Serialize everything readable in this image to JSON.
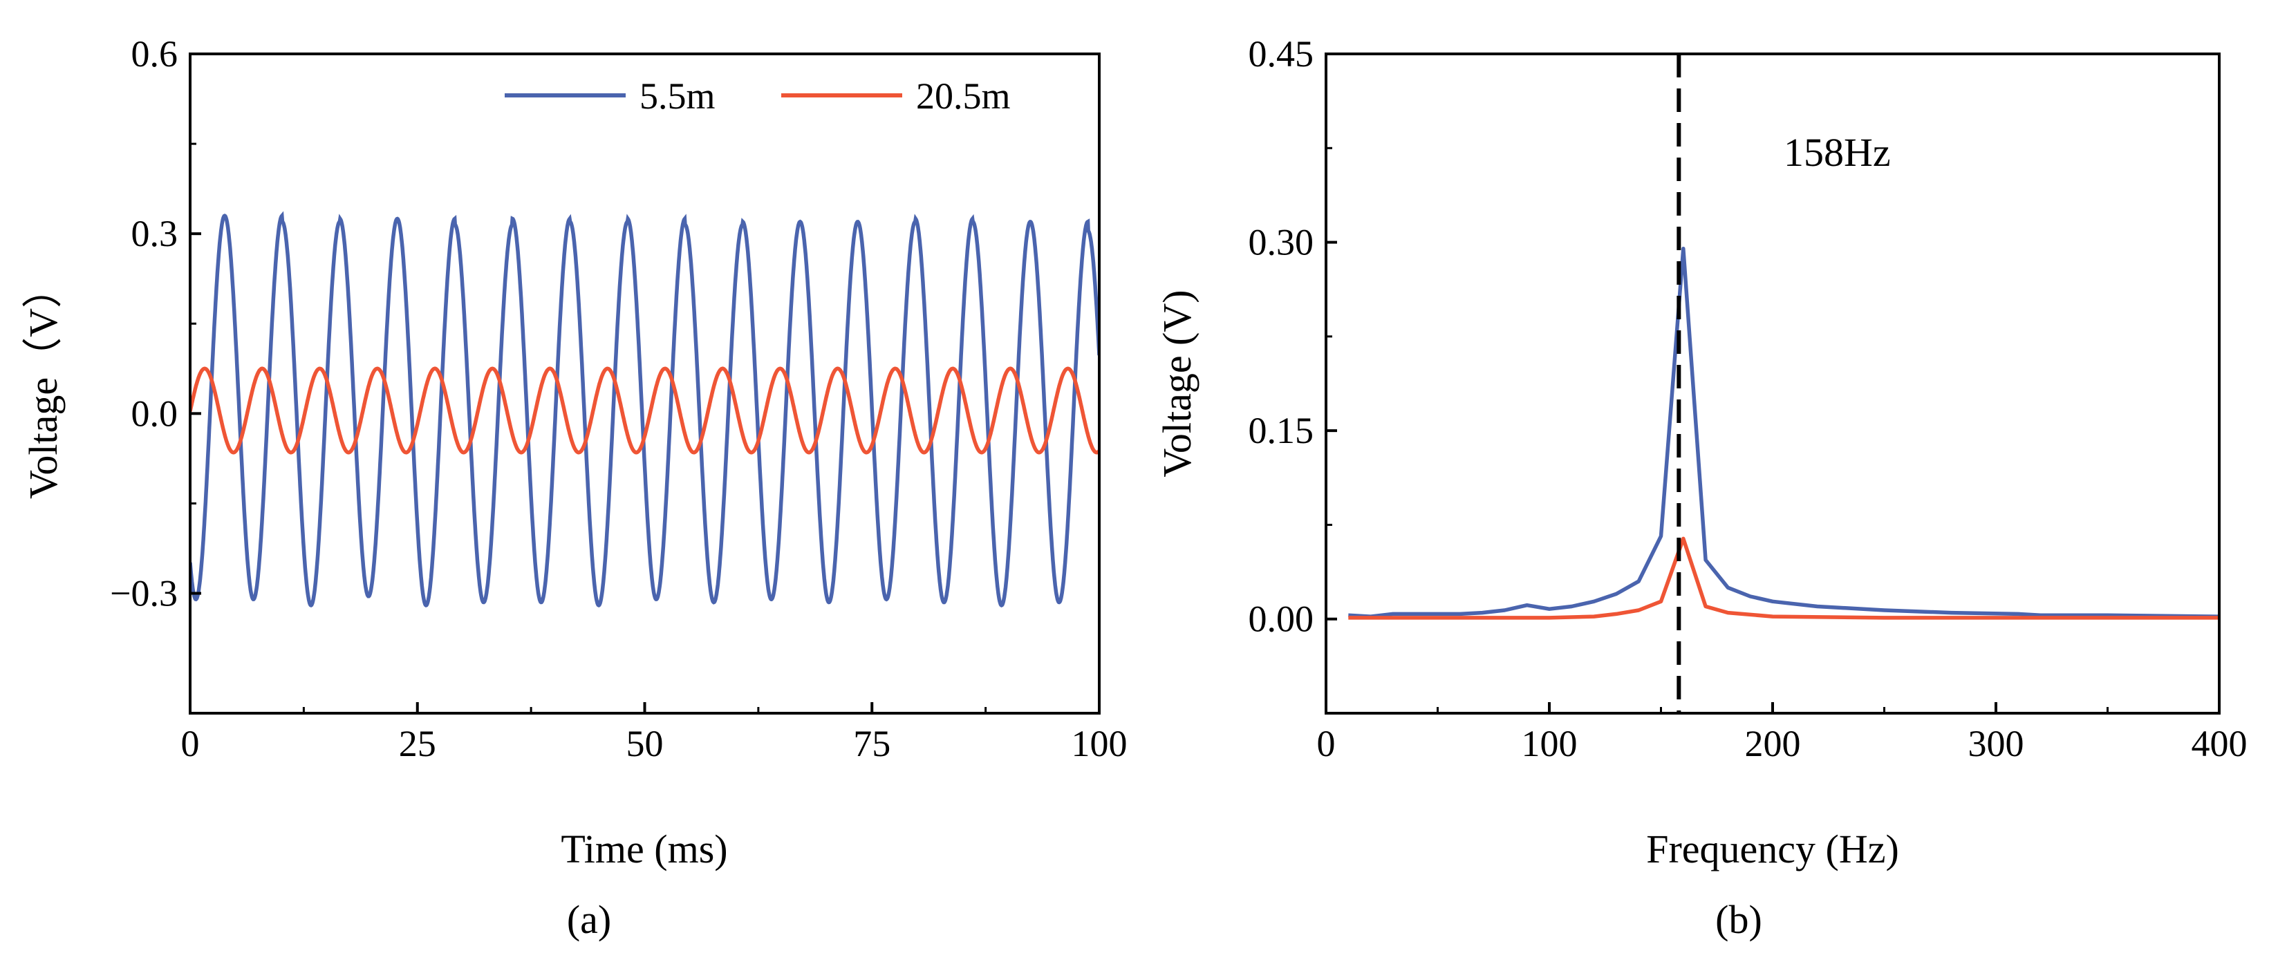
{
  "chart_data": [
    {
      "panel": "a",
      "type": "line",
      "title": "",
      "xlabel": "Time (ms)",
      "ylabel": "Voltage（V）",
      "panel_label": "(a)",
      "xlim": [
        0,
        100
      ],
      "ylim": [
        -0.5,
        0.6
      ],
      "xticks": [
        0,
        25,
        50,
        75,
        100
      ],
      "xtick_labels": [
        "0",
        "25",
        "50",
        "75",
        "100"
      ],
      "yticks": [
        0.6,
        0.3,
        0.0,
        -0.3
      ],
      "ytick_labels": [
        "0.6",
        "0.3",
        "0.0",
        "−0.3"
      ],
      "grid": false,
      "legend": "top-right",
      "series": [
        {
          "name": "5.5m",
          "color": "#4a64ae",
          "waveform": "sine",
          "period_ms": 6.33,
          "peak_times_ms": [
            3.8,
            10.1,
            16.4,
            22.7,
            29.1,
            35.4,
            41.7,
            48.0,
            54.3,
            60.7,
            67.0,
            73.3,
            79.6,
            85.9,
            92.3,
            98.6
          ],
          "peak_values": [
            0.33,
            0.32,
            0.325,
            0.325,
            0.315,
            0.325,
            0.32,
            0.325,
            0.315,
            0.32,
            0.32,
            0.32,
            0.325,
            0.32,
            0.32,
            0.305
          ],
          "trough_values": [
            -0.31,
            -0.32,
            -0.305,
            -0.32,
            -0.315,
            -0.315,
            -0.32,
            -0.31,
            -0.315,
            -0.31,
            -0.315,
            -0.31,
            -0.315,
            -0.32,
            -0.315,
            -0.31
          ]
        },
        {
          "name": "20.5m",
          "color": "#ef5535",
          "waveform": "sine",
          "period_ms": 6.33,
          "phase_ms": 1.6,
          "amplitude": 0.07,
          "offset": 0.005
        }
      ]
    },
    {
      "panel": "b",
      "type": "line",
      "title": "",
      "xlabel": "Frequency (Hz)",
      "ylabel": "Voltage (V)",
      "panel_label": "(b)",
      "xlim": [
        0,
        400
      ],
      "ylim": [
        -0.075,
        0.45
      ],
      "xticks": [
        0,
        100,
        200,
        300,
        400
      ],
      "xtick_labels": [
        "0",
        "100",
        "200",
        "300",
        "400"
      ],
      "yticks": [
        0.45,
        0.3,
        0.15,
        0.0
      ],
      "ytick_labels": [
        "0.45",
        "0.30",
        "0.15",
        "0.00"
      ],
      "grid": false,
      "annotation": {
        "text": "158Hz",
        "x": 158,
        "marker": "dashed-vertical-line"
      },
      "series": [
        {
          "name": "5.5m",
          "color": "#4a64ae",
          "x": [
            10,
            20,
            30,
            40,
            50,
            60,
            70,
            80,
            90,
            100,
            110,
            120,
            130,
            140,
            150,
            160,
            170,
            180,
            190,
            200,
            220,
            250,
            280,
            310,
            320,
            350,
            400
          ],
          "y": [
            0.003,
            0.002,
            0.004,
            0.004,
            0.004,
            0.004,
            0.005,
            0.007,
            0.011,
            0.008,
            0.01,
            0.014,
            0.02,
            0.03,
            0.066,
            0.295,
            0.047,
            0.025,
            0.018,
            0.014,
            0.01,
            0.007,
            0.005,
            0.004,
            0.003,
            0.003,
            0.002
          ]
        },
        {
          "name": "20.5m",
          "color": "#ef5535",
          "x": [
            10,
            50,
            100,
            120,
            130,
            140,
            150,
            160,
            170,
            180,
            200,
            250,
            300,
            400
          ],
          "y": [
            0.001,
            0.001,
            0.001,
            0.002,
            0.004,
            0.007,
            0.014,
            0.064,
            0.01,
            0.005,
            0.002,
            0.001,
            0.001,
            0.001
          ]
        }
      ]
    }
  ]
}
